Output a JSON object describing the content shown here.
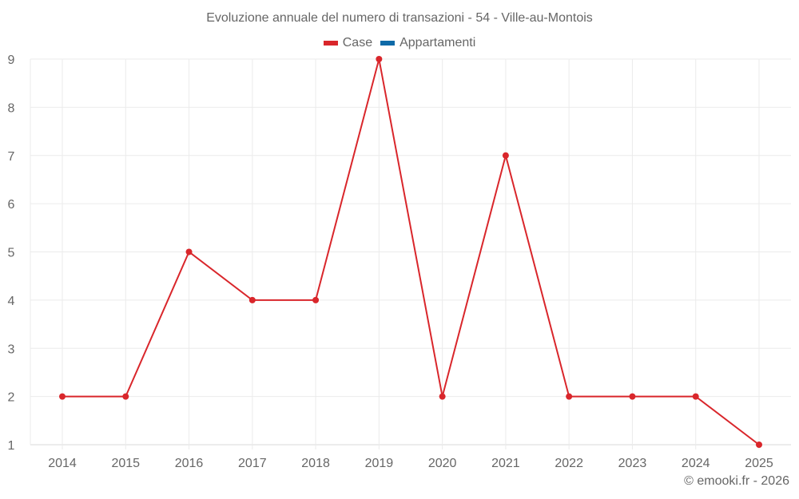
{
  "chart_data": {
    "type": "line",
    "title": "Evoluzione annuale del numero di transazioni - 54 - Ville-au-Montois",
    "categories": [
      "2014",
      "2015",
      "2016",
      "2017",
      "2018",
      "2019",
      "2020",
      "2021",
      "2022",
      "2023",
      "2024",
      "2025"
    ],
    "series": [
      {
        "name": "Case",
        "color": "#d9262b",
        "values": [
          2,
          2,
          5,
          4,
          4,
          9,
          2,
          7,
          2,
          2,
          2,
          1
        ]
      },
      {
        "name": "Appartamenti",
        "color": "#0e6aa8",
        "values": []
      }
    ],
    "xlabel": "",
    "ylabel": "",
    "ylim": [
      1,
      9
    ],
    "yticks": [
      1,
      2,
      3,
      4,
      5,
      6,
      7,
      8,
      9
    ],
    "grid": true,
    "legend_position": "top"
  },
  "title": "Evoluzione annuale del numero di transazioni - 54 - Ville-au-Montois",
  "legend": [
    {
      "label": "Case",
      "color": "#d9262b"
    },
    {
      "label": "Appartamenti",
      "color": "#0e6aa8"
    }
  ],
  "credit": "© emooki.fr - 2026"
}
